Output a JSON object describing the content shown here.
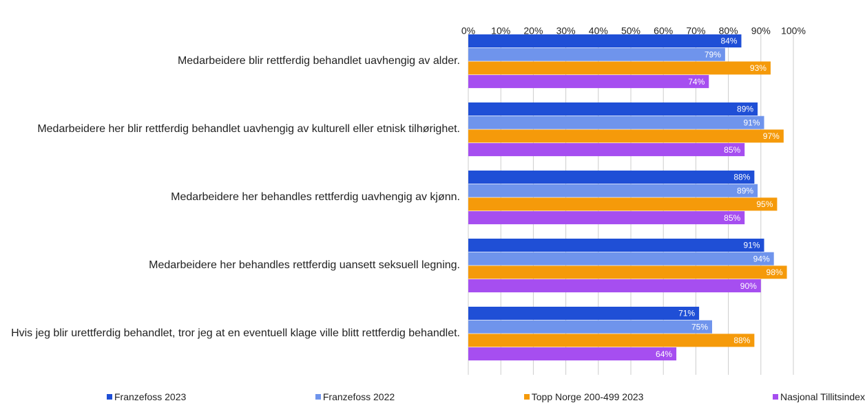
{
  "chart_data": {
    "type": "bar",
    "orientation": "horizontal",
    "categories": [
      "Medarbeidere blir rettferdig behandlet uavhengig av alder.",
      "Medarbeidere her blir rettferdig behandlet uavhengig av kulturell eller etnisk tilhørighet.",
      "Medarbeidere her behandles rettferdig uavhengig av kjønn.",
      "Medarbeidere her behandles rettferdig uansett seksuell legning.",
      "Hvis jeg blir urettferdig behandlet, tror jeg at en eventuell klage ville blitt rettferdig behandlet."
    ],
    "series": [
      {
        "name": "Franzefoss 2023",
        "color": "#1f4fd6",
        "values": [
          84,
          89,
          88,
          91,
          71
        ],
        "value_labels": [
          "84%",
          "89%",
          "88%",
          "91%",
          "71%"
        ]
      },
      {
        "name": "Franzefoss 2022",
        "color": "#6f94ec",
        "values": [
          79,
          91,
          89,
          94,
          75
        ],
        "value_labels": [
          "79%",
          "91%",
          "89%",
          "94%",
          "75%"
        ]
      },
      {
        "name": "Topp Norge 200-499 2023",
        "color": "#f59a0a",
        "values": [
          93,
          97,
          95,
          98,
          88
        ],
        "value_labels": [
          "93%",
          "97%",
          "95%",
          "98%",
          "88%"
        ]
      },
      {
        "name": "Nasjonal Tillitsindex",
        "color": "#a64ef0",
        "values": [
          74,
          85,
          85,
          90,
          64
        ],
        "value_labels": [
          "74%",
          "85%",
          "85%",
          "90%",
          "64%"
        ]
      }
    ],
    "xlim": [
      0,
      100
    ],
    "xticks": [
      {
        "value": 0,
        "label": "0%"
      },
      {
        "value": 10,
        "label": "10%"
      },
      {
        "value": 20,
        "label": "20%"
      },
      {
        "value": 30,
        "label": "30%"
      },
      {
        "value": 40,
        "label": "40%"
      },
      {
        "value": 50,
        "label": "50%"
      },
      {
        "value": 60,
        "label": "60%"
      },
      {
        "value": 70,
        "label": "70%"
      },
      {
        "value": 80,
        "label": "80%"
      },
      {
        "value": 90,
        "label": "90%"
      },
      {
        "value": 100,
        "label": "100%"
      }
    ],
    "grid": true,
    "legend": "bottom"
  }
}
